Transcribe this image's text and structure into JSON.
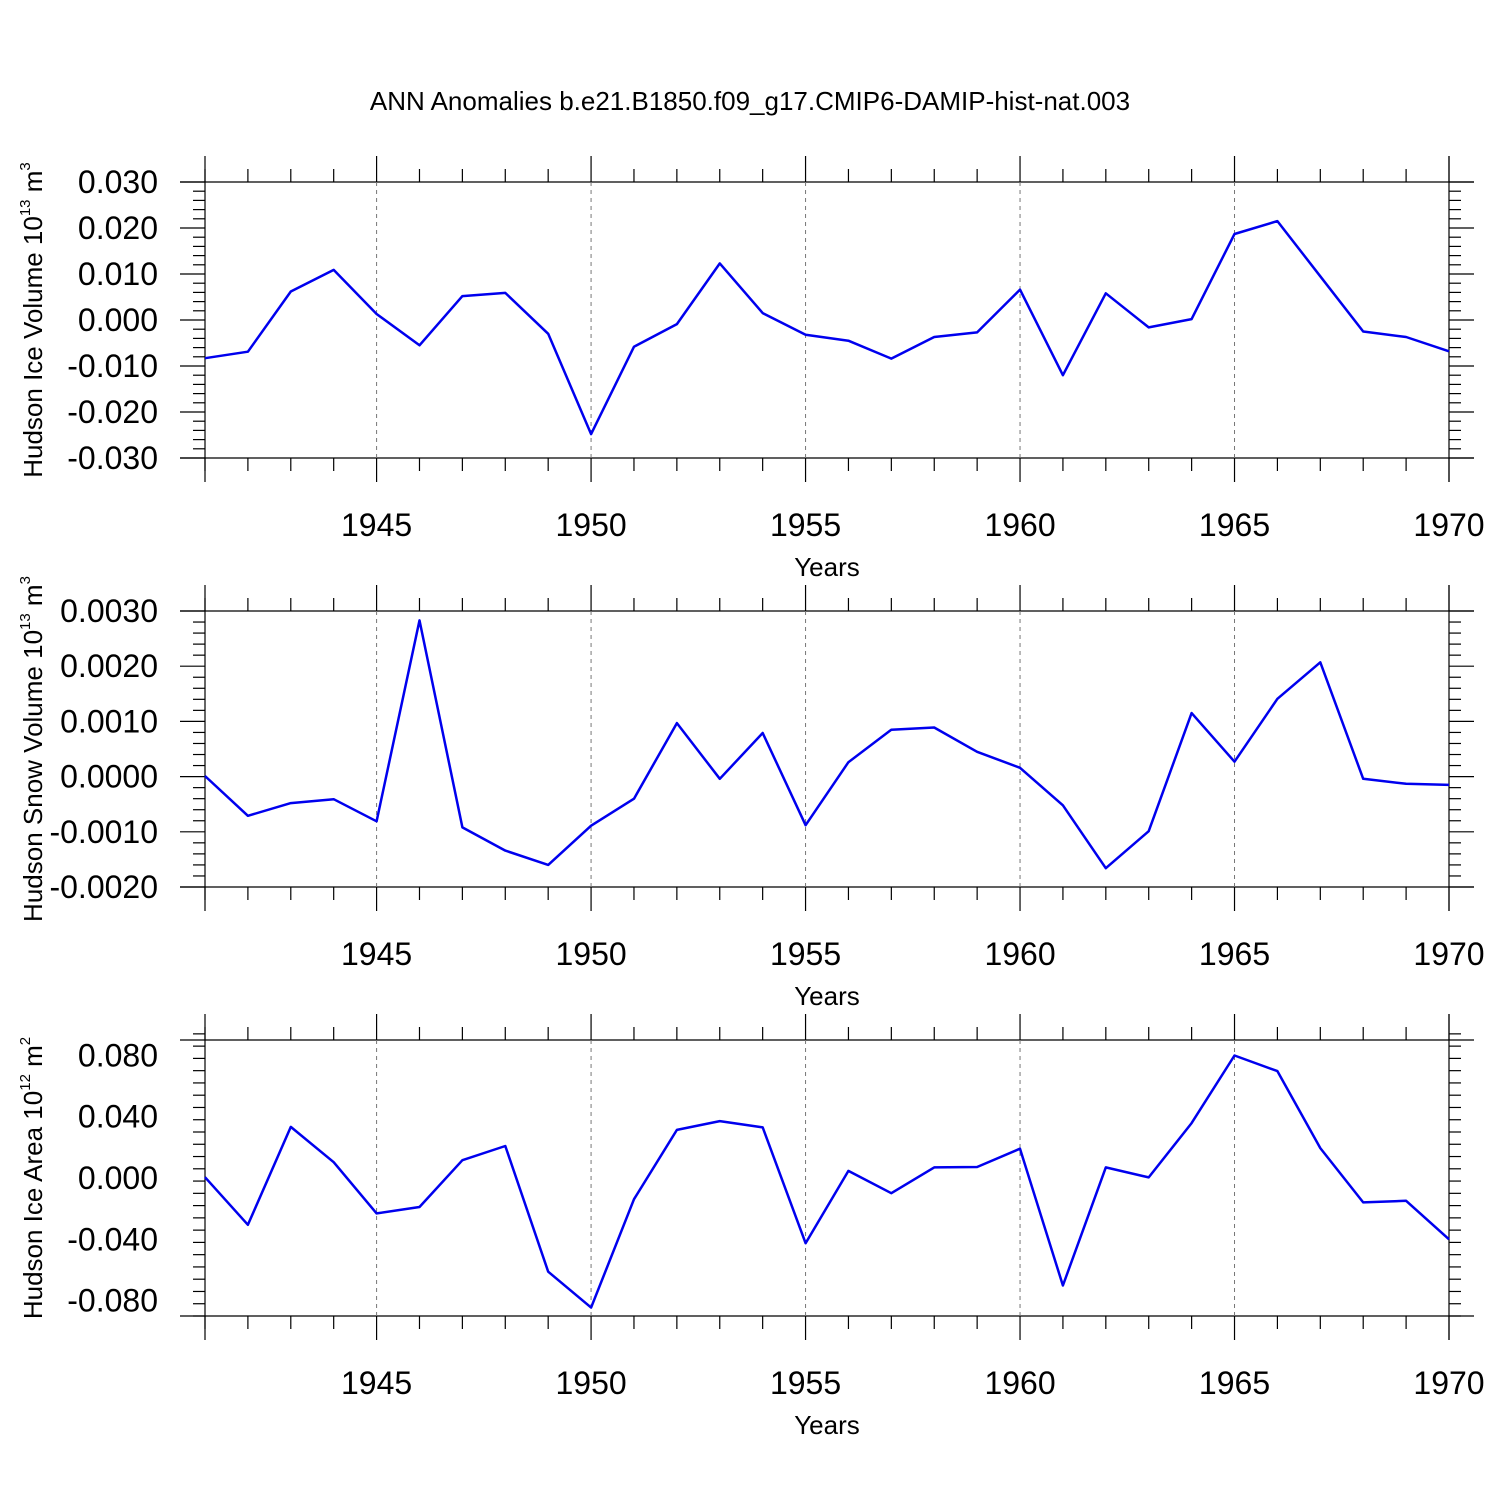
{
  "title": "ANN Anomalies b.e21.B1850.f09_g17.CMIP6-DAMIP-hist-nat.003",
  "colors": {
    "line": "#0000ee",
    "grid": "#777777",
    "axis": "#000000"
  },
  "chart_data": [
    {
      "type": "line",
      "ylabel": {
        "main": "Hudson Ice Volume 10",
        "sup": "13",
        "unit": " m",
        "unit_sup": "3"
      },
      "xlabel": "Years",
      "xlim": [
        1941,
        1970
      ],
      "ylim": [
        -0.03,
        0.03
      ],
      "xticks": [
        1945,
        1950,
        1955,
        1960,
        1965,
        1970
      ],
      "xtick_labels": [
        "1945",
        "1950",
        "1955",
        "1960",
        "1965",
        "1970"
      ],
      "yticks": [
        -0.03,
        -0.02,
        -0.01,
        0.0,
        0.01,
        0.02,
        0.03
      ],
      "ytick_labels": [
        "-0.030",
        "-0.020",
        "-0.010",
        "0.000",
        "0.010",
        "0.020",
        "0.030"
      ],
      "x_minor_step": 1,
      "y_minor_step": 0.002,
      "grid": "x-dashed-at-major",
      "x": [
        1941,
        1942,
        1943,
        1944,
        1945,
        1946,
        1947,
        1948,
        1949,
        1950,
        1951,
        1952,
        1953,
        1954,
        1955,
        1956,
        1957,
        1958,
        1959,
        1960,
        1961,
        1962,
        1963,
        1964,
        1965,
        1966,
        1967,
        1968,
        1969,
        1970
      ],
      "values": [
        -0.0083,
        -0.0069,
        0.0062,
        0.0109,
        0.0013,
        -0.0055,
        0.0052,
        0.0059,
        -0.003,
        -0.0248,
        -0.0058,
        -0.0009,
        0.0123,
        0.0015,
        -0.0032,
        -0.0045,
        -0.0084,
        -0.0037,
        -0.0027,
        0.0066,
        -0.012,
        0.0058,
        -0.0016,
        0.0002,
        0.0187,
        0.0215,
        0.0095,
        -0.0025,
        -0.0037,
        -0.0068
      ]
    },
    {
      "type": "line",
      "ylabel": {
        "main": "Hudson Snow Volume 10",
        "sup": "13",
        "unit": " m",
        "unit_sup": "3"
      },
      "xlabel": "Years",
      "xlim": [
        1941,
        1970
      ],
      "ylim": [
        -0.002,
        0.003
      ],
      "xticks": [
        1945,
        1950,
        1955,
        1960,
        1965,
        1970
      ],
      "xtick_labels": [
        "1945",
        "1950",
        "1955",
        "1960",
        "1965",
        "1970"
      ],
      "yticks": [
        -0.002,
        -0.001,
        0.0,
        0.001,
        0.002,
        0.003
      ],
      "ytick_labels": [
        "-0.0020",
        "-0.0010",
        "0.0000",
        "0.0010",
        "0.0020",
        "0.0030"
      ],
      "x_minor_step": 1,
      "y_minor_step": 0.0002,
      "grid": "x-dashed-at-major",
      "x": [
        1941,
        1942,
        1943,
        1944,
        1945,
        1946,
        1947,
        1948,
        1949,
        1950,
        1951,
        1952,
        1953,
        1954,
        1955,
        1956,
        1957,
        1958,
        1959,
        1960,
        1961,
        1962,
        1963,
        1964,
        1965,
        1966,
        1967,
        1968,
        1969,
        1970
      ],
      "values": [
        1e-05,
        -0.00071,
        -0.00048,
        -0.00041,
        -0.00081,
        0.00283,
        -0.00092,
        -0.00134,
        -0.0016,
        -0.00089,
        -0.0004,
        0.00097,
        -4e-05,
        0.00079,
        -0.00088,
        0.00026,
        0.00085,
        0.00089,
        0.00045,
        0.00016,
        -0.00052,
        -0.00166,
        -0.00099,
        0.00115,
        0.00027,
        0.00141,
        0.00207,
        -4e-05,
        -0.00013,
        -0.00015
      ]
    },
    {
      "type": "line",
      "ylabel": {
        "main": "Hudson Ice Area 10",
        "sup": "12",
        "unit": " m",
        "unit_sup": "2"
      },
      "xlabel": "Years",
      "xlim": [
        1941,
        1970
      ],
      "ylim": [
        -0.09,
        0.09
      ],
      "xticks": [
        1945,
        1950,
        1955,
        1960,
        1965,
        1970
      ],
      "xtick_labels": [
        "1945",
        "1950",
        "1955",
        "1960",
        "1965",
        "1970"
      ],
      "yticks": [
        -0.08,
        -0.04,
        0.0,
        0.04,
        0.08
      ],
      "ytick_labels": [
        "-0.080",
        "-0.040",
        "0.000",
        "0.040",
        "0.080"
      ],
      "x_minor_step": 1,
      "y_minor_step": 0.008,
      "grid": "x-dashed-at-major",
      "x": [
        1941,
        1942,
        1943,
        1944,
        1945,
        1946,
        1947,
        1948,
        1949,
        1950,
        1951,
        1952,
        1953,
        1954,
        1955,
        1956,
        1957,
        1958,
        1959,
        1960,
        1961,
        1962,
        1963,
        1964,
        1965,
        1966,
        1967,
        1968,
        1969,
        1970
      ],
      "values": [
        0.0005,
        -0.0305,
        0.0333,
        0.0103,
        -0.0231,
        -0.0189,
        0.0116,
        0.0209,
        -0.0611,
        -0.0845,
        -0.0138,
        0.0314,
        0.0371,
        0.033,
        -0.0425,
        0.0046,
        -0.0099,
        0.0069,
        0.0072,
        0.0191,
        -0.0701,
        0.0069,
        0.0004,
        0.0358,
        0.0799,
        0.0697,
        0.0195,
        -0.0159,
        -0.0149,
        -0.04
      ]
    }
  ]
}
